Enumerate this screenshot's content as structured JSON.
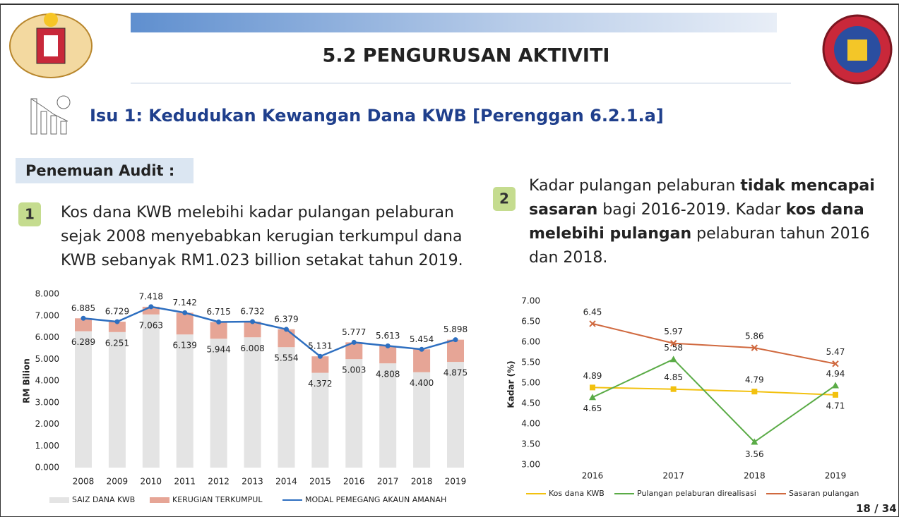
{
  "header": {
    "title": "5.2 PENGURUSAN AKTIVITI",
    "issue": "Isu 1: Kedudukan Kewangan Dana KWB [Perenggan 6.2.1.a]",
    "section": "Penemuan Audit :",
    "page": "18 / 34"
  },
  "points": [
    {
      "number": "1",
      "lines": [
        [
          {
            "text": "Kos dana KWB melebihi kadar pulangan pelaburan"
          }
        ],
        [
          {
            "text": "sejak 2008 menyebabkan kerugian terkumpul dana"
          }
        ],
        [
          {
            "text": "KWB sebanyak RM1.023 billion setakat tahun 2019."
          }
        ]
      ]
    },
    {
      "number": "2",
      "lines": [
        [
          {
            "text": "Kadar pulangan pelaburan "
          },
          {
            "text": "tidak mencapai",
            "bold": true
          }
        ],
        [
          {
            "text": "sasaran",
            "bold": true
          },
          {
            "text": " bagi 2016-2019. Kadar "
          },
          {
            "text": "kos dana",
            "bold": true
          }
        ],
        [
          {
            "text": "melebihi pulangan",
            "bold": true
          },
          {
            "text": " pelaburan tahun 2016"
          }
        ],
        [
          {
            "text": "dan 2018."
          }
        ]
      ]
    }
  ],
  "chart_data": [
    {
      "type": "bar",
      "stacked": true,
      "ylabel": "RM Bilion",
      "categories": [
        "2008",
        "2009",
        "2010",
        "2011",
        "2012",
        "2013",
        "2014",
        "2015",
        "2016",
        "2017",
        "2018",
        "2019"
      ],
      "ylim": [
        0,
        8
      ],
      "yticks": [
        {
          "value": 0,
          "label": "0.000"
        },
        {
          "value": 1,
          "label": "1.000"
        },
        {
          "value": 2,
          "label": "2.000"
        },
        {
          "value": 3,
          "label": "3.000"
        },
        {
          "value": 4,
          "label": "4.000"
        },
        {
          "value": 5,
          "label": "5.000"
        },
        {
          "value": 6,
          "label": "6.000"
        },
        {
          "value": 7,
          "label": "7.000"
        },
        {
          "value": 8,
          "label": "8.000"
        }
      ],
      "series": [
        {
          "name": "SAIZ DANA KWB",
          "color": "#e4e4e4",
          "values": [
            6.289,
            6.251,
            7.063,
            6.139,
            5.944,
            6.008,
            5.554,
            4.372,
            5.003,
            4.808,
            4.4,
            4.875
          ],
          "value_labels": [
            "6.289",
            "6.251",
            "7.063",
            "6.139",
            "5.944",
            "6.008",
            "5.554",
            "4.372",
            "5.003",
            "4.808",
            "4.400",
            "4.875"
          ]
        },
        {
          "name": "KERUGIAN TERKUMPUL",
          "color": "#e6a596",
          "values": [
            0.596,
            0.478,
            0.355,
            1.003,
            0.771,
            0.724,
            0.825,
            0.759,
            0.774,
            0.805,
            1.054,
            1.023
          ]
        },
        {
          "name": "MODAL PEMEGANG AKAUN AMANAH",
          "color": "#2e6fc0",
          "type": "line",
          "values": [
            6.885,
            6.729,
            7.418,
            7.142,
            6.715,
            6.732,
            6.379,
            5.131,
            5.777,
            5.613,
            5.454,
            5.898
          ]
        }
      ]
    },
    {
      "type": "line",
      "ylabel": "Kadar (%)",
      "categories": [
        "2016",
        "2017",
        "2018",
        "2019"
      ],
      "ylim": [
        3,
        7
      ],
      "yticks": [
        {
          "value": 3,
          "label": "3.00"
        },
        {
          "value": 3.5,
          "label": "3.50"
        },
        {
          "value": 4,
          "label": "4.00"
        },
        {
          "value": 4.5,
          "label": "4.50"
        },
        {
          "value": 5,
          "label": "5.00"
        },
        {
          "value": 5.5,
          "label": "5.50"
        },
        {
          "value": 6,
          "label": "6.00"
        },
        {
          "value": 6.5,
          "label": "6.50"
        },
        {
          "value": 7,
          "label": "7.00"
        }
      ],
      "series": [
        {
          "name": "Kos dana KWB",
          "color": "#f2c10f",
          "marker": "square",
          "values": [
            4.89,
            4.85,
            4.79,
            4.71
          ]
        },
        {
          "name": "Pulangan pelaburan direalisasi",
          "color": "#5aab46",
          "marker": "triangle",
          "values": [
            4.65,
            5.58,
            3.56,
            4.94
          ]
        },
        {
          "name": "Sasaran pulangan",
          "color": "#d0693f",
          "marker": "cross",
          "values": [
            6.45,
            5.97,
            5.86,
            5.47
          ]
        }
      ]
    }
  ]
}
